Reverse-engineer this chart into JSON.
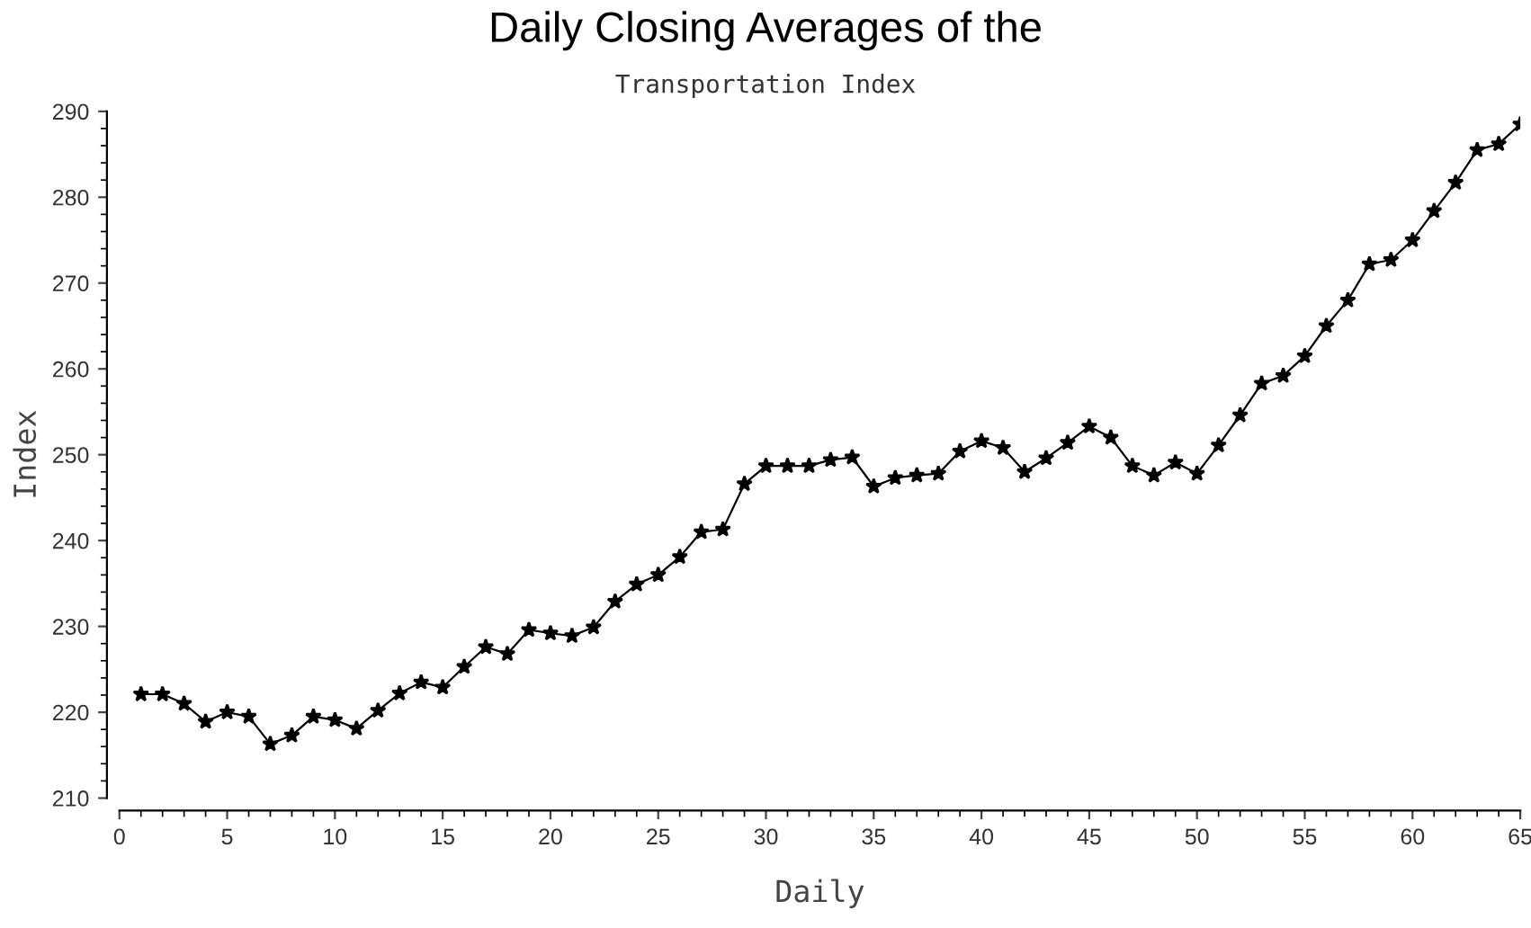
{
  "chart_data": {
    "type": "line",
    "title": "Daily Closing Averages of the",
    "subtitle": "Transportation Index",
    "xlabel": "Daily",
    "ylabel": "Index",
    "x": [
      1,
      2,
      3,
      4,
      5,
      6,
      7,
      8,
      9,
      10,
      11,
      12,
      13,
      14,
      15,
      16,
      17,
      18,
      19,
      20,
      21,
      22,
      23,
      24,
      25,
      26,
      27,
      28,
      29,
      30,
      31,
      32,
      33,
      34,
      35,
      36,
      37,
      38,
      39,
      40,
      41,
      42,
      43,
      44,
      45,
      46,
      47,
      48,
      49,
      50,
      51,
      52,
      53,
      54,
      55,
      56,
      57,
      58,
      59,
      60,
      61,
      62,
      63,
      64,
      65
    ],
    "series": [
      {
        "color": "#000000",
        "values": [
          222.1,
          222.1,
          221.0,
          218.9,
          220.0,
          219.5,
          216.3,
          217.3,
          219.5,
          219.1,
          218.1,
          220.2,
          222.2,
          223.5,
          222.9,
          225.3,
          227.6,
          226.8,
          229.6,
          229.2,
          228.9,
          229.9,
          232.9,
          234.9,
          236.0,
          238.1,
          241.0,
          241.3,
          246.6,
          248.7,
          248.7,
          248.7,
          249.4,
          249.7,
          246.3,
          247.3,
          247.6,
          247.8,
          250.4,
          251.6,
          250.8,
          248.0,
          249.6,
          251.4,
          253.3,
          252.0,
          248.7,
          247.6,
          249.1,
          247.8,
          251.1,
          254.6,
          258.3,
          259.2,
          261.5,
          265.0,
          268.0,
          272.2,
          272.7,
          275.0,
          278.4,
          281.7,
          285.5,
          286.2,
          288.5
        ]
      }
    ],
    "xlim": [
      0,
      65
    ],
    "xticks": [
      0,
      5,
      10,
      15,
      20,
      25,
      30,
      35,
      40,
      45,
      50,
      55,
      60,
      65
    ],
    "ylim": [
      210,
      290
    ],
    "yticks": [
      210,
      220,
      230,
      240,
      250,
      260,
      270,
      280,
      290
    ],
    "marker": "star",
    "line_style": "solid",
    "grid": false,
    "legend": false
  }
}
